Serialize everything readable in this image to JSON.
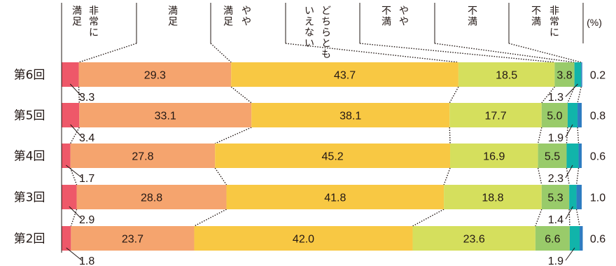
{
  "chart_data": {
    "type": "bar",
    "stacked": true,
    "orientation": "horizontal",
    "unit_label": "(%)",
    "categories": [
      "第6回",
      "第5回",
      "第4回",
      "第3回",
      "第2回"
    ],
    "series": [
      {
        "name": "非常に満足",
        "color": "#EE5869",
        "values": [
          3.3,
          3.4,
          1.7,
          2.9,
          1.8
        ]
      },
      {
        "name": "満足",
        "color": "#F5A46E",
        "values": [
          29.3,
          33.1,
          27.8,
          28.8,
          23.7
        ]
      },
      {
        "name": "やや満足",
        "color": "#F8C843",
        "values": [
          43.7,
          38.1,
          45.2,
          41.8,
          42.0
        ]
      },
      {
        "name": "どちらともいえない",
        "color": "#D5DF5D",
        "values": [
          18.5,
          17.7,
          16.9,
          18.8,
          23.6
        ]
      },
      {
        "name": "やや不満",
        "color": "#99CB6A",
        "values": [
          3.8,
          5.0,
          5.5,
          5.3,
          6.6
        ]
      },
      {
        "name": "不満",
        "color": "#11B4AA",
        "values": [
          1.3,
          1.9,
          2.3,
          1.4,
          1.9
        ]
      },
      {
        "name": "非常に不満",
        "color": "#2E7CC1",
        "values": [
          0.2,
          0.8,
          0.6,
          1.0,
          0.6
        ]
      }
    ],
    "value_labels": {
      "inside": [
        [
          "29.3",
          "43.7",
          "18.5",
          "3.8"
        ],
        [
          "33.1",
          "38.1",
          "17.7",
          "5.0"
        ],
        [
          "27.8",
          "45.2",
          "16.9",
          "5.5"
        ],
        [
          "28.8",
          "41.8",
          "18.8",
          "5.3"
        ],
        [
          "23.7",
          "42.0",
          "23.6",
          "6.6"
        ]
      ],
      "below_left": [
        "3.3",
        "3.4",
        "1.7",
        "2.9",
        "1.8"
      ],
      "below_right": [
        "1.3",
        "1.9",
        "2.3",
        "1.4",
        "1.9"
      ],
      "right": [
        "0.2",
        "0.8",
        "0.6",
        "1.0",
        "0.6"
      ]
    },
    "legend_headers": [
      {
        "text": "非常に満足",
        "lines": [
          "満足",
          "非常に"
        ]
      },
      {
        "text": "満足",
        "lines": [
          "満足"
        ]
      },
      {
        "text": "やや満足",
        "lines": [
          "満足",
          "やや"
        ]
      },
      {
        "text": "どちらともいえない",
        "lines": [
          "いえない",
          "どちらとも"
        ]
      },
      {
        "text": "やや不満",
        "lines": [
          "不満",
          "やや"
        ]
      },
      {
        "text": "不満",
        "lines": [
          "不満"
        ]
      },
      {
        "text": "非常に不満",
        "lines": [
          "不満",
          "非常に"
        ]
      }
    ],
    "xlim": [
      0,
      100
    ]
  }
}
